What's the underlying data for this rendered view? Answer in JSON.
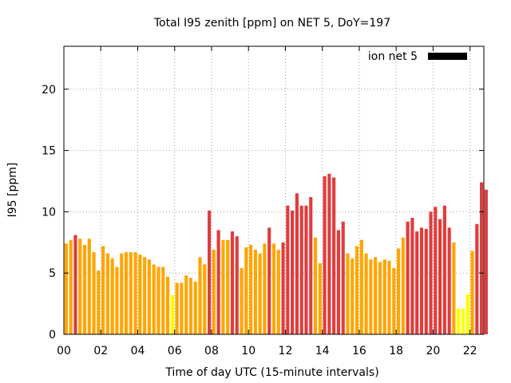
{
  "chart_data": {
    "type": "bar",
    "title": "Total I95 zenith [ppm] on NET 5, DoY=197",
    "xlabel": "Time of day UTC (15-minute intervals)",
    "ylabel": "I95 [ppm]",
    "xlim": [
      0,
      22.75
    ],
    "ylim": [
      0,
      23.5
    ],
    "x_ticks": [
      "00",
      "02",
      "04",
      "06",
      "08",
      "10",
      "12",
      "14",
      "16",
      "18",
      "20",
      "22"
    ],
    "y_ticks": [
      "0",
      "5",
      "10",
      "15",
      "20"
    ],
    "bar_interval_hours": 0.25,
    "grid": true,
    "legend": {
      "label": "ion net 5",
      "position": "top-right",
      "color": "#000000"
    },
    "color_scale": {
      "low": "#ffff00",
      "mid": "#ffa500",
      "high": "#e03c3c"
    },
    "series": [
      {
        "values": [
          7.4,
          7.7,
          8.1,
          7.8,
          7.3,
          7.8,
          6.7,
          5.2,
          7.2,
          6.6,
          6.2,
          5.5,
          6.6,
          6.7,
          6.7,
          6.7,
          6.5,
          6.3,
          6.1,
          5.7,
          5.5,
          5.5,
          4.7,
          3.2,
          4.2,
          4.2,
          4.8,
          4.6,
          4.3,
          6.3,
          5.7,
          10.1,
          6.9,
          8.5,
          7.7,
          7.7,
          8.4,
          8.0,
          5.4,
          7.1,
          7.3,
          6.9,
          6.6,
          7.4,
          8.7,
          7.4,
          6.9,
          7.5,
          10.5,
          10.1,
          11.5,
          10.5,
          10.5,
          11.2,
          7.9,
          5.8,
          12.9,
          13.1,
          12.8,
          8.5,
          9.2,
          6.6,
          6.2,
          7.2,
          7.7,
          6.6,
          6.1,
          6.3,
          5.9,
          6.1,
          6.0,
          5.4,
          7.0,
          7.9,
          9.2,
          9.5,
          8.4,
          8.7,
          8.6,
          10.0,
          10.4,
          9.4,
          10.5,
          8.7,
          7.5,
          2.1,
          2.1,
          3.3,
          6.8,
          9.0,
          12.4,
          11.8
        ],
        "levels": [
          "mid",
          "mid",
          "high",
          "mid",
          "mid",
          "mid",
          "mid",
          "mid",
          "mid",
          "mid",
          "mid",
          "mid",
          "mid",
          "mid",
          "mid",
          "mid",
          "mid",
          "mid",
          "mid",
          "mid",
          "mid",
          "mid",
          "mid",
          "low",
          "mid",
          "mid",
          "mid",
          "mid",
          "mid",
          "mid",
          "mid",
          "high",
          "mid",
          "high",
          "mid",
          "mid",
          "high",
          "high",
          "mid",
          "mid",
          "mid",
          "mid",
          "mid",
          "mid",
          "high",
          "mid",
          "mid",
          "high",
          "high",
          "high",
          "high",
          "high",
          "high",
          "high",
          "mid",
          "mid",
          "high",
          "high",
          "high",
          "high",
          "high",
          "mid",
          "mid",
          "mid",
          "mid",
          "mid",
          "mid",
          "mid",
          "mid",
          "mid",
          "mid",
          "mid",
          "mid",
          "mid",
          "high",
          "high",
          "high",
          "high",
          "high",
          "high",
          "high",
          "high",
          "high",
          "high",
          "mid",
          "low",
          "low",
          "low",
          "mid",
          "high",
          "high",
          "high"
        ]
      }
    ]
  }
}
